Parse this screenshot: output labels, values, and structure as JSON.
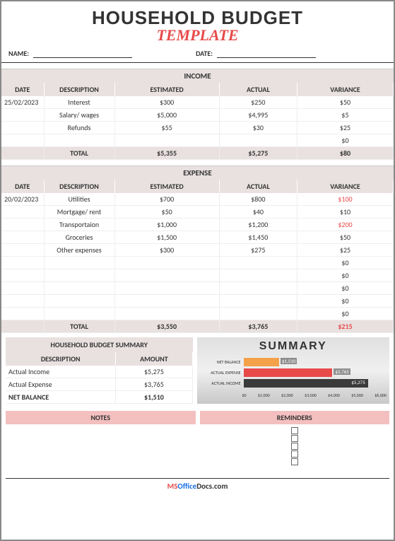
{
  "header": {
    "title_main": "HOUSEHOLD BUDGET",
    "title_sub": "TEMPLATE",
    "name_label": "NAME:",
    "date_label": "DATE:"
  },
  "income": {
    "heading": "INCOME",
    "columns": [
      "DATE",
      "DESCRIPTION",
      "ESTIMATED",
      "ACTUAL",
      "VARIANCE"
    ],
    "rows": [
      {
        "date": "25/02/2023",
        "desc": "Interest",
        "est": "$300",
        "act": "$250",
        "var": "$50",
        "neg": false
      },
      {
        "date": "",
        "desc": "Salary/ wages",
        "est": "$5,000",
        "act": "$4,995",
        "var": "$5",
        "neg": false
      },
      {
        "date": "",
        "desc": "Refunds",
        "est": "$55",
        "act": "$30",
        "var": "$25",
        "neg": false
      },
      {
        "date": "",
        "desc": "",
        "est": "",
        "act": "",
        "var": "$0",
        "neg": false
      }
    ],
    "total": {
      "label": "TOTAL",
      "est": "$5,355",
      "act": "$5,275",
      "var": "$80",
      "neg": false
    }
  },
  "expense": {
    "heading": "EXPENSE",
    "columns": [
      "DATE",
      "DESCRIPTION",
      "ESTIMATED",
      "ACTUAL",
      "VARIANCE"
    ],
    "rows": [
      {
        "date": "20/02/2023",
        "desc": "Utilities",
        "est": "$700",
        "act": "$800",
        "var": "$100",
        "neg": true
      },
      {
        "date": "",
        "desc": "Mortgage/ rent",
        "est": "$50",
        "act": "$40",
        "var": "$10",
        "neg": false
      },
      {
        "date": "",
        "desc": "Transportaion",
        "est": "$1,000",
        "act": "$1,200",
        "var": "$200",
        "neg": true
      },
      {
        "date": "",
        "desc": "Groceries",
        "est": "$1,500",
        "act": "$1,450",
        "var": "$50",
        "neg": false
      },
      {
        "date": "",
        "desc": "Other expenses",
        "est": "$300",
        "act": "$275",
        "var": "$25",
        "neg": false
      },
      {
        "date": "",
        "desc": "",
        "est": "",
        "act": "",
        "var": "$0",
        "neg": false
      },
      {
        "date": "",
        "desc": "",
        "est": "",
        "act": "",
        "var": "$0",
        "neg": false
      },
      {
        "date": "",
        "desc": "",
        "est": "",
        "act": "",
        "var": "$0",
        "neg": false
      },
      {
        "date": "",
        "desc": "",
        "est": "",
        "act": "",
        "var": "$0",
        "neg": false
      },
      {
        "date": "",
        "desc": "",
        "est": "",
        "act": "",
        "var": "$0",
        "neg": false
      }
    ],
    "total": {
      "label": "TOTAL",
      "est": "$3,550",
      "act": "$3,765",
      "var": "$215",
      "neg": true
    }
  },
  "summary_table": {
    "heading": "HOUSEHOLD BUDGET SUMMARY",
    "columns": [
      "DESCRIPTION",
      "AMOUNT"
    ],
    "rows": [
      {
        "desc": "Actual Income",
        "amt": "$5,275"
      },
      {
        "desc": "Actual Expense",
        "amt": "$3,765"
      }
    ],
    "net": {
      "desc": "NET BALANCE",
      "amt": "$1,510"
    }
  },
  "chart": {
    "title": "SUMMARY",
    "type": "bar-horizontal",
    "max": 6000,
    "bars": [
      {
        "label": "NET BALANCE",
        "value": 1510,
        "display": "$1,510",
        "color": "#f4a24a",
        "inside": false
      },
      {
        "label": "ACTUAL EXPENSE",
        "value": 3765,
        "display": "$3,765",
        "color": "#e84a4a",
        "inside": false
      },
      {
        "label": "ACTUAL INCOME",
        "value": 5275,
        "display": "$5,275",
        "color": "#3a3a3a",
        "inside": true
      }
    ],
    "ticks": [
      "$0",
      "$1,000",
      "$2,000",
      "$3,000",
      "$4,000",
      "$5,000",
      "$6,000"
    ],
    "background": "#d8d8d8",
    "label_fontsize": 6
  },
  "notes": {
    "heading": "NOTES"
  },
  "reminders": {
    "heading": "REMINDERS",
    "checkbox_count": 5
  },
  "footer": {
    "ms": "MS",
    "office": "Office",
    "rest": "Docs.com"
  },
  "colors": {
    "header_band": "#e9e0e0",
    "accent_red": "#e84a4a",
    "notes_pink": "#f4bfbf",
    "border": "#888888"
  }
}
